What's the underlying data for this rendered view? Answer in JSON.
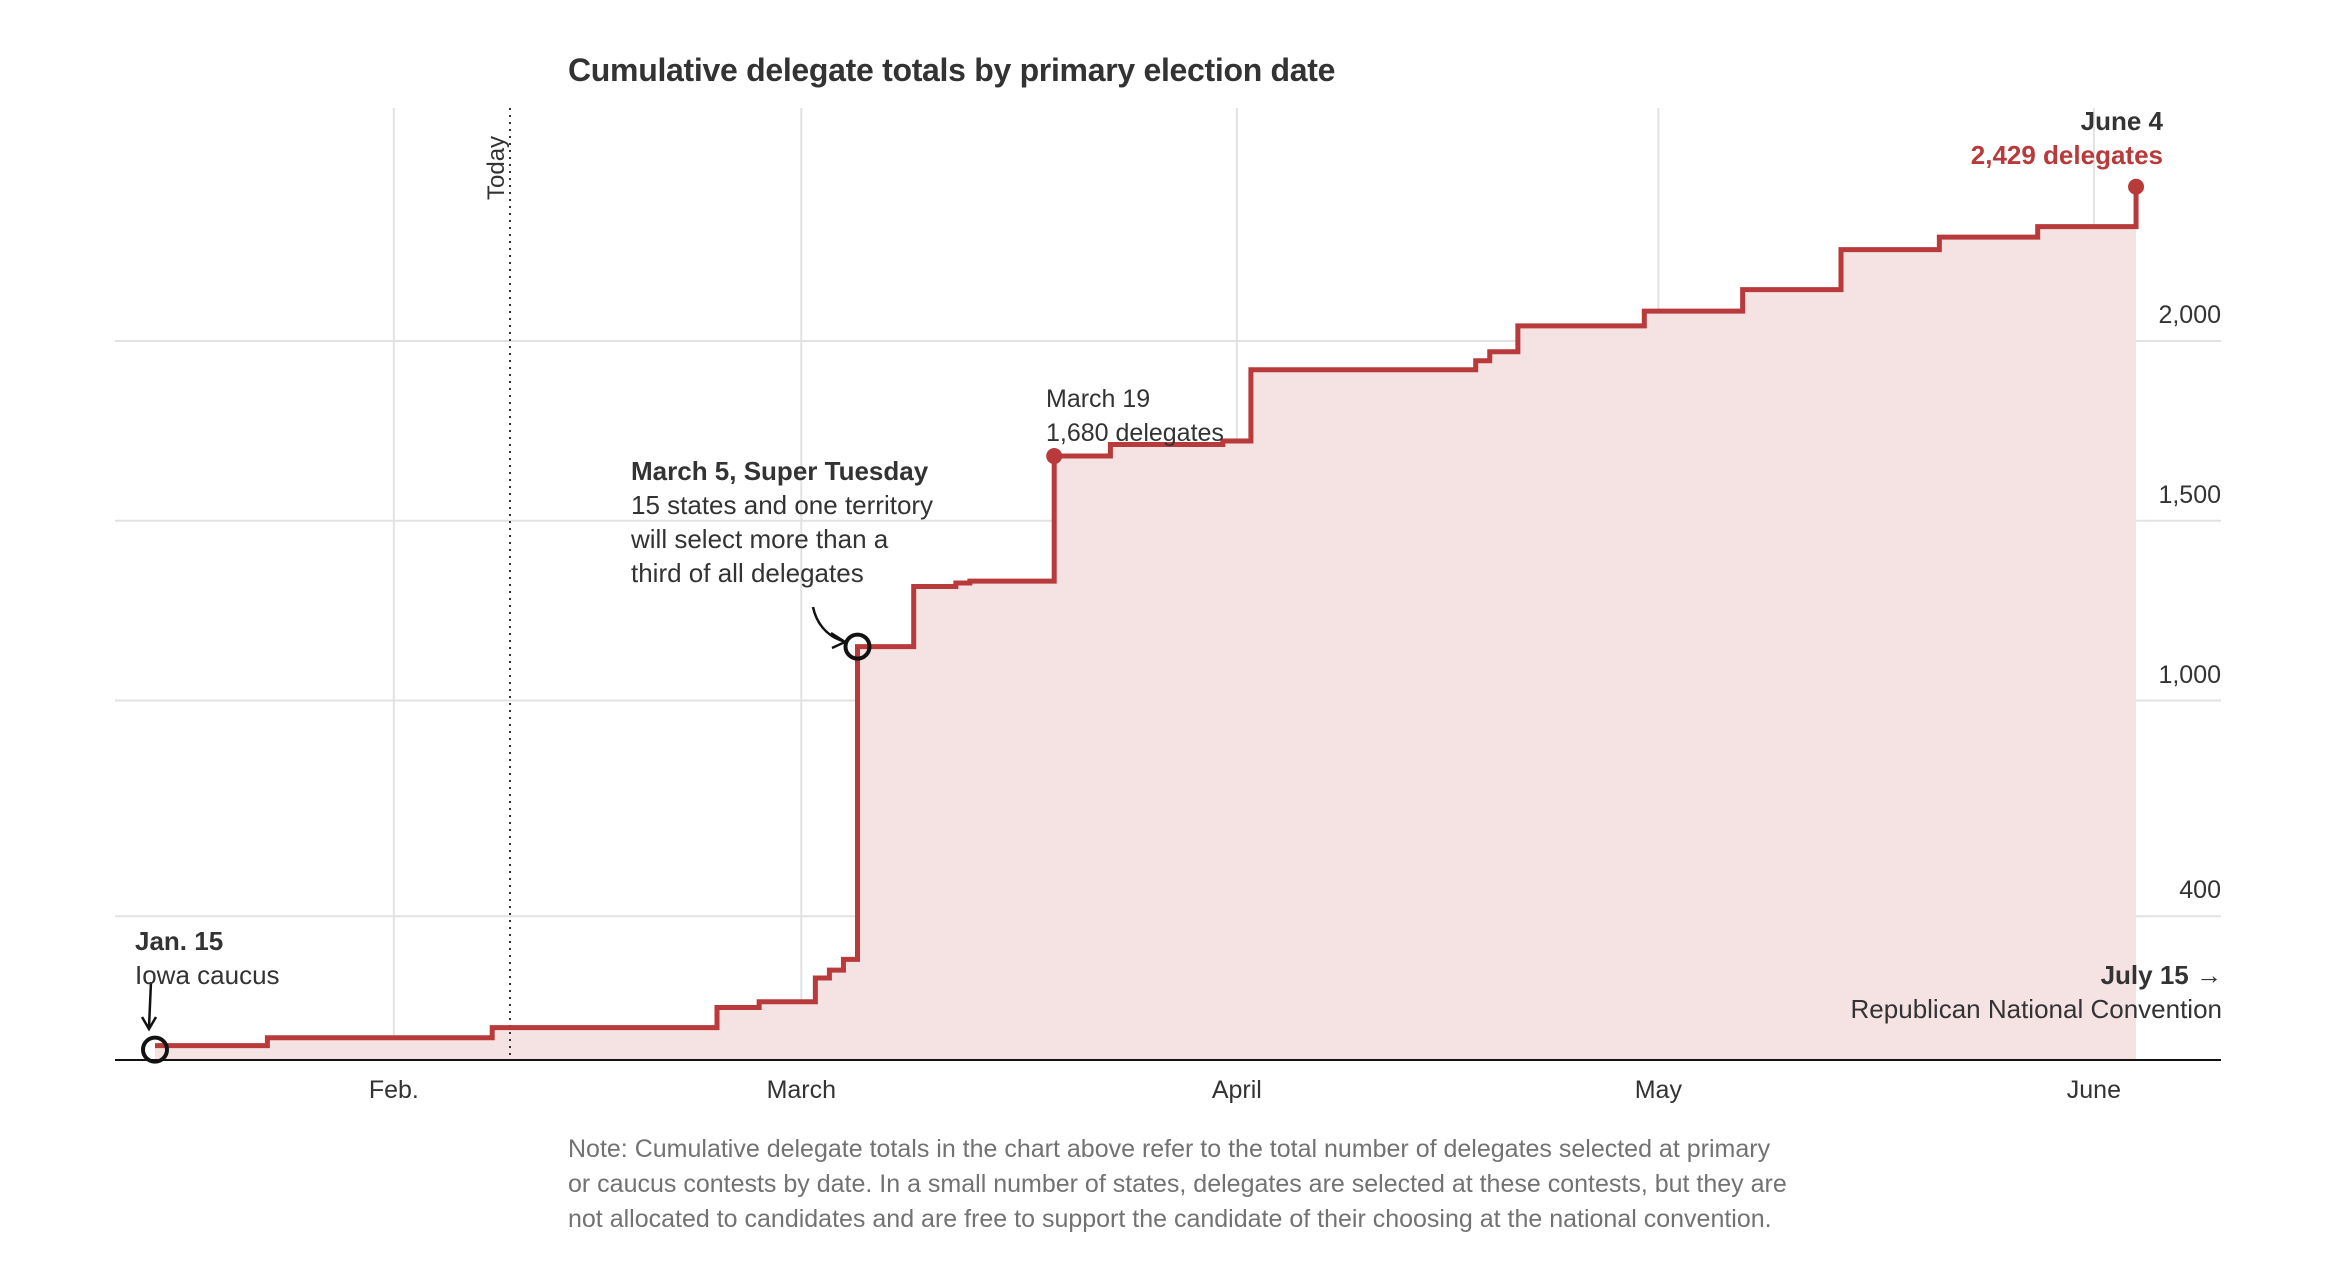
{
  "chart_data": {
    "type": "area",
    "title": "Cumulative delegate totals by primary election date",
    "x_ticks": [
      "Feb.",
      "March",
      "April",
      "May",
      "June"
    ],
    "y_ticks": [
      "400",
      "1,000",
      "1,500",
      "2,000"
    ],
    "today_label": "Today",
    "series": [
      {
        "color": "#b83a3a",
        "fill": "#f5e2e3",
        "points": [
          {
            "x": "2024-01-15",
            "y": 40
          },
          {
            "x": "2024-01-23",
            "y": 62
          },
          {
            "x": "2024-02-06",
            "y": 62
          },
          {
            "x": "2024-02-08",
            "y": 90
          },
          {
            "x": "2024-02-24",
            "y": 146
          },
          {
            "x": "2024-02-27",
            "y": 162
          },
          {
            "x": "2024-03-02",
            "y": 228
          },
          {
            "x": "2024-03-03",
            "y": 250
          },
          {
            "x": "2024-03-04",
            "y": 280
          },
          {
            "x": "2024-03-05",
            "y": 1150
          },
          {
            "x": "2024-03-09",
            "y": 1317
          },
          {
            "x": "2024-03-12",
            "y": 1327
          },
          {
            "x": "2024-03-13",
            "y": 1332
          },
          {
            "x": "2024-03-19",
            "y": 1680
          },
          {
            "x": "2024-03-23",
            "y": 1712
          },
          {
            "x": "2024-03-31",
            "y": 1722
          },
          {
            "x": "2024-04-02",
            "y": 1920
          },
          {
            "x": "2024-04-18",
            "y": 1945
          },
          {
            "x": "2024-04-19",
            "y": 1970
          },
          {
            "x": "2024-04-21",
            "y": 2042
          },
          {
            "x": "2024-04-30",
            "y": 2083
          },
          {
            "x": "2024-05-07",
            "y": 2143
          },
          {
            "x": "2024-05-14",
            "y": 2254
          },
          {
            "x": "2024-05-21",
            "y": 2289
          },
          {
            "x": "2024-05-28",
            "y": 2318
          },
          {
            "x": "2024-06-04",
            "y": 2429
          }
        ]
      }
    ],
    "annotations": {
      "start": {
        "bold": "Jan. 15",
        "text": "Iowa caucus"
      },
      "super_tuesday": {
        "bold": "March 5, Super Tuesday",
        "lines": [
          "15 states and one territory",
          "will select more than a",
          "third of all delegates"
        ]
      },
      "march19": {
        "line1": "March 19",
        "line2": "1,680 delegates"
      },
      "end": {
        "bold": "June 4",
        "value": "2,429 delegates"
      },
      "convention": {
        "bold": "July 15 →",
        "text": "Republican National Convention"
      }
    },
    "note": "Note: Cumulative delegate totals in the chart above refer to the total number of delegates selected at primary or caucus contests by date. In a small number of states, delegates are selected at these contests, but they are not allocated to candidates and are free to support the candidate of their choosing at the national convention."
  }
}
